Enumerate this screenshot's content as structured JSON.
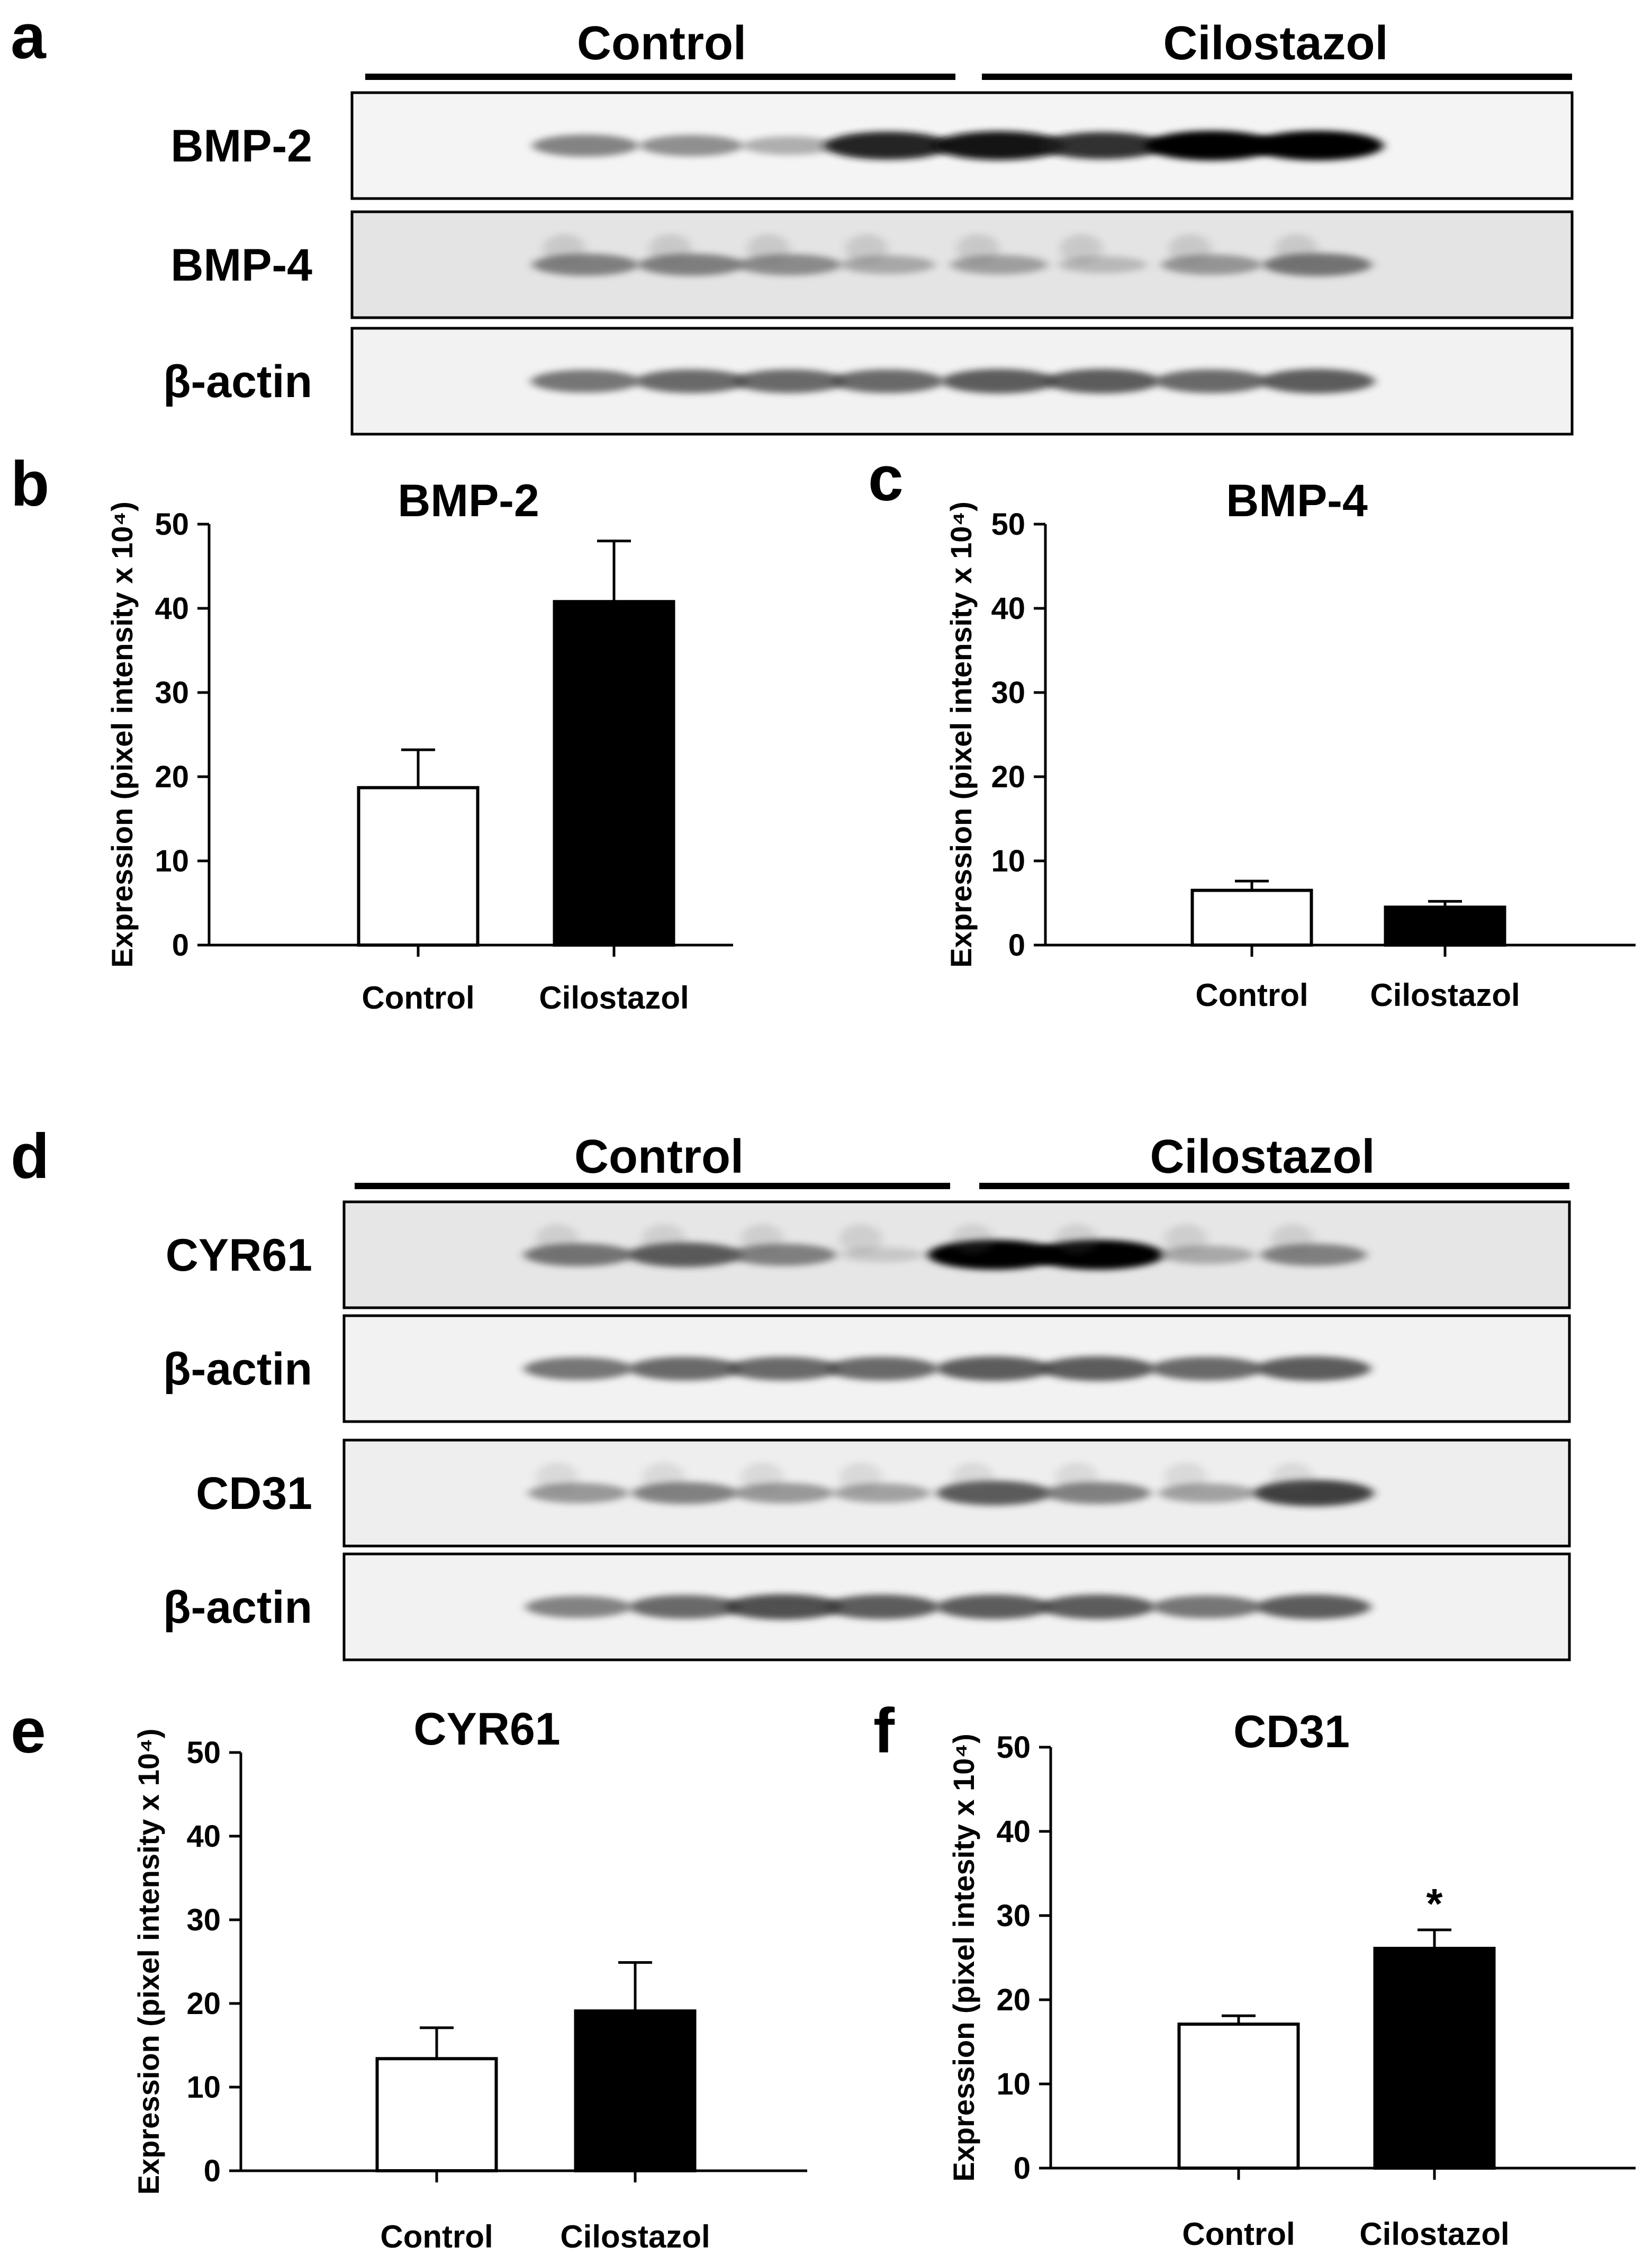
{
  "panels": {
    "a": {
      "letter": "a",
      "groups": [
        "Control",
        "Cilostazol"
      ],
      "blots": [
        {
          "label": "BMP-2",
          "intensity": [
            0.55,
            0.5,
            0.35,
            0.9,
            0.95,
            0.85,
            1.0,
            1.0
          ],
          "noise": 0.1,
          "bg": "#f4f4f4"
        },
        {
          "label": "BMP-4",
          "intensity": [
            0.55,
            0.55,
            0.5,
            0.35,
            0.4,
            0.25,
            0.45,
            0.6
          ],
          "noise": 0.35,
          "bg": "#e4e4e4"
        },
        {
          "label": "β-actin",
          "intensity": [
            0.6,
            0.65,
            0.65,
            0.65,
            0.7,
            0.7,
            0.65,
            0.7
          ],
          "noise": 0.05,
          "bg": "#f2f2f2"
        }
      ]
    },
    "d": {
      "letter": "d",
      "groups": [
        "Control",
        "Cilostazol"
      ],
      "blots": [
        {
          "label": "CYR61",
          "intensity": [
            0.6,
            0.7,
            0.55,
            0.15,
            1.0,
            1.0,
            0.35,
            0.55
          ],
          "noise": 0.3,
          "bg": "#e6e6e6"
        },
        {
          "label": "β-actin",
          "intensity": [
            0.6,
            0.65,
            0.65,
            0.65,
            0.7,
            0.7,
            0.65,
            0.7
          ],
          "noise": 0.05,
          "bg": "#f2f2f2"
        },
        {
          "label": "CD31",
          "intensity": [
            0.45,
            0.55,
            0.45,
            0.4,
            0.7,
            0.55,
            0.4,
            0.8
          ],
          "noise": 0.25,
          "bg": "#eeeeee"
        },
        {
          "label": "β-actin",
          "intensity": [
            0.55,
            0.65,
            0.75,
            0.7,
            0.7,
            0.7,
            0.6,
            0.7
          ],
          "noise": 0.05,
          "bg": "#f2f2f2"
        }
      ]
    }
  },
  "chart_data": [
    {
      "panel": "b",
      "type": "bar",
      "title": "BMP-2",
      "ylabel": "Expression (pixel intensity x 10⁴)",
      "xlabel": "",
      "categories": [
        "Control",
        "Cilostazol"
      ],
      "values": [
        18.7,
        40.8
      ],
      "errors": [
        4.5,
        7.2
      ],
      "fills": [
        "#ffffff",
        "#000000"
      ],
      "ylim": [
        0,
        50
      ],
      "yticks": [
        0,
        10,
        20,
        30,
        40,
        50
      ],
      "annotations": [
        "",
        ""
      ]
    },
    {
      "panel": "c",
      "type": "bar",
      "title": "BMP-4",
      "ylabel": "Expression (pixel intensity x 10⁴)",
      "xlabel": "",
      "categories": [
        "Control",
        "Cilostazol"
      ],
      "values": [
        6.5,
        4.5
      ],
      "errors": [
        1.1,
        0.7
      ],
      "fills": [
        "#ffffff",
        "#000000"
      ],
      "ylim": [
        0,
        50
      ],
      "yticks": [
        0,
        10,
        20,
        30,
        40,
        50
      ],
      "annotations": [
        "",
        ""
      ]
    },
    {
      "panel": "e",
      "type": "bar",
      "title": "CYR61",
      "ylabel": "Expression (pixel intensity x 10⁴)",
      "xlabel": "",
      "categories": [
        "Control",
        "Cilostazol"
      ],
      "values": [
        13.4,
        19.1
      ],
      "errors": [
        3.7,
        5.8
      ],
      "fills": [
        "#ffffff",
        "#000000"
      ],
      "ylim": [
        0,
        50
      ],
      "yticks": [
        0,
        10,
        20,
        30,
        40,
        50
      ],
      "annotations": [
        "",
        ""
      ]
    },
    {
      "panel": "f",
      "type": "bar",
      "title": "CD31",
      "ylabel": "Expression (pixel intesity x 10⁴)",
      "xlabel": "",
      "categories": [
        "Control",
        "Cilostazol"
      ],
      "values": [
        17.1,
        26.1
      ],
      "errors": [
        1.0,
        2.2
      ],
      "fills": [
        "#ffffff",
        "#000000"
      ],
      "ylim": [
        0,
        50
      ],
      "yticks": [
        0,
        10,
        20,
        30,
        40,
        50
      ],
      "annotations": [
        "",
        "*"
      ]
    }
  ]
}
